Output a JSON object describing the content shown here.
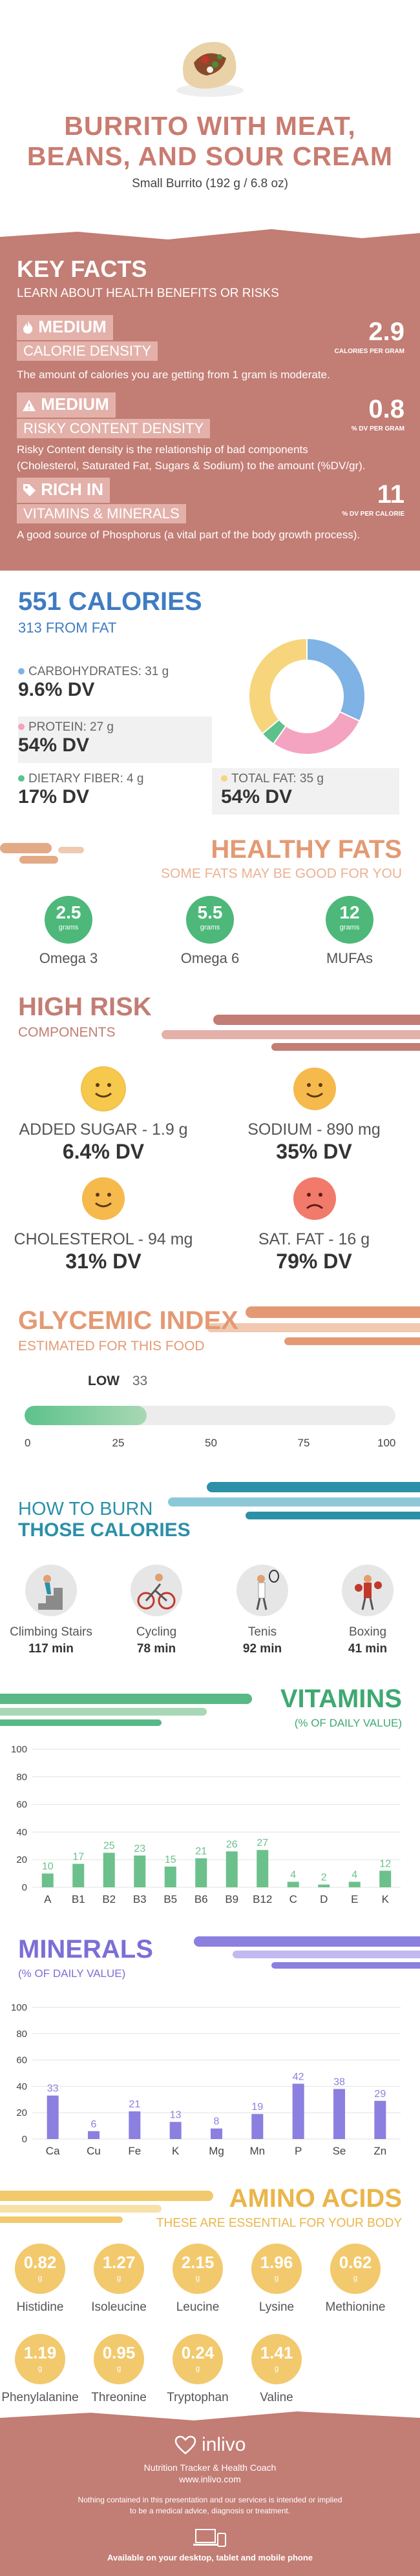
{
  "header": {
    "title_line1": "BURRITO WITH MEAT,",
    "title_line2": "BEANS, AND SOUR CREAM",
    "subtitle": "Small Burrito (192 g / 6.8 oz)"
  },
  "key_facts": {
    "title": "KEY FACTS",
    "subtitle": "LEARN ABOUT HEALTH BENEFITS OR RISKS",
    "items": [
      {
        "tag": "MEDIUM",
        "name": "CALORIE DENSITY",
        "value": "2.9",
        "unit": "CALORIES PER GRAM",
        "desc": "The amount of calories you are getting from 1 gram is moderate.",
        "icon": "flame-icon"
      },
      {
        "tag": "MEDIUM",
        "name": "RISKY CONTENT DENSITY",
        "value": "0.8",
        "unit": "% DV PER GRAM",
        "desc1": "Risky Content density is the relationship of bad components",
        "desc2": "(Cholesterol, Saturated Fat, Sugars & Sodium) to the amount (%DV/gr).",
        "icon": "warning-icon"
      },
      {
        "tag": "RICH  IN",
        "name": "VITAMINS & MINERALS",
        "value": "11",
        "unit": "% DV PER CALORIE",
        "desc": "A good source of Phosphorus (a vital part of the body growth process).",
        "icon": "tag-icon"
      }
    ]
  },
  "calories": {
    "title": "551 CALORIES",
    "subtitle": "313 FROM FAT",
    "carbs": {
      "label": "CARBOHYDRATES: 31 g",
      "dv": "9.6% DV",
      "color": "#7fb2e5"
    },
    "protein": {
      "label": "PROTEIN: 27 g",
      "dv": "54% DV",
      "color": "#f4a3c0"
    },
    "fiber": {
      "label": "DIETARY FIBER: 4 g",
      "dv": "17% DV",
      "color": "#5cc18b"
    },
    "fat": {
      "label": "TOTAL FAT: 35 g",
      "dv": "54% DV",
      "color": "#f6d57c"
    }
  },
  "chart_data": [
    {
      "type": "pie",
      "categories": [
        "Carbohydrates",
        "Protein",
        "Dietary Fiber",
        "Total Fat"
      ],
      "values": [
        31,
        27,
        4,
        35
      ]
    },
    {
      "type": "bar",
      "title": "VITAMINS",
      "subtitle": "(% OF DAILY VALUE)",
      "categories": [
        "A",
        "B1",
        "B2",
        "B3",
        "B5",
        "B6",
        "B9",
        "B12",
        "C",
        "D",
        "E",
        "K"
      ],
      "values": [
        10,
        17,
        25,
        23,
        15,
        21,
        26,
        27,
        4,
        2,
        4,
        12
      ],
      "yticks": [
        0,
        20,
        40,
        60,
        80,
        100
      ],
      "ylim": [
        0,
        100
      ],
      "color": "#6cc08b"
    },
    {
      "type": "bar",
      "title": "MINERALS",
      "subtitle": "(% OF DAILY VALUE)",
      "categories": [
        "Ca",
        "Cu",
        "Fe",
        "K",
        "Mg",
        "Mn",
        "P",
        "Se",
        "Zn"
      ],
      "values": [
        33,
        6,
        21,
        13,
        8,
        19,
        42,
        38,
        29
      ],
      "yticks": [
        0,
        20,
        40,
        60,
        80,
        100
      ],
      "ylim": [
        0,
        100
      ],
      "color": "#8b7fe0"
    }
  ],
  "healthy_fats": {
    "title": "HEALTHY FATS",
    "subtitle": "SOME FATS MAY BE GOOD FOR YOU",
    "unit": "grams",
    "items": [
      {
        "value": "2.5",
        "label": "Omega 3"
      },
      {
        "value": "5.5",
        "label": "Omega 6"
      },
      {
        "value": "12",
        "label": "MUFAs"
      }
    ]
  },
  "high_risk": {
    "title": "HIGH RISK",
    "subtitle": "COMPONENTS",
    "items": [
      {
        "label": "ADDED SUGAR - 1.9 g",
        "dv": "6.4% DV",
        "face": "smile"
      },
      {
        "label": "SODIUM - 890 mg",
        "dv": "35% DV",
        "face": "smile"
      },
      {
        "label": "CHOLESTEROL - 94 mg",
        "dv": "31% DV",
        "face": "smile"
      },
      {
        "label": "SAT. FAT - 16 g",
        "dv": "79% DV",
        "face": "sad"
      }
    ]
  },
  "glycemic": {
    "title": "GLYCEMIC INDEX",
    "subtitle": "ESTIMATED FOR THIS FOOD",
    "level": "LOW",
    "value": "33",
    "fraction": 0.33,
    "ticks": [
      "0",
      "25",
      "50",
      "75",
      "100"
    ]
  },
  "burn": {
    "title1": "HOW TO BURN",
    "title2": "THOSE CALORIES",
    "items": [
      {
        "label": "Climbing Stairs",
        "min": "117 min",
        "icon": "stairs-icon"
      },
      {
        "label": "Cycling",
        "min": "78 min",
        "icon": "cycling-icon"
      },
      {
        "label": "Tenis",
        "min": "92 min",
        "icon": "tennis-icon"
      },
      {
        "label": "Boxing",
        "min": "41 min",
        "icon": "boxing-icon"
      }
    ]
  },
  "amino": {
    "title": "AMINO ACIDS",
    "subtitle": "THESE ARE ESSENTIAL FOR YOUR BODY",
    "unit": "g",
    "items": [
      {
        "value": "0.82",
        "label": "Histidine"
      },
      {
        "value": "1.27",
        "label": "Isoleucine"
      },
      {
        "value": "2.15",
        "label": "Leucine"
      },
      {
        "value": "1.96",
        "label": "Lysine"
      },
      {
        "value": "0.62",
        "label": "Methionine"
      },
      {
        "value": "1.19",
        "label": "Phenylalanine"
      },
      {
        "value": "0.95",
        "label": "Threonine"
      },
      {
        "value": "0.24",
        "label": "Tryptophan"
      },
      {
        "value": "1.41",
        "label": "Valine"
      }
    ]
  },
  "footer": {
    "brand": "inlivo",
    "tagline": "Nutrition Tracker & Health Coach",
    "url": "www.inlivo.com",
    "disclaimer1": "Nothing contained in this presentation and our services is intended or implied",
    "disclaimer2": "to be a medical advice, diagnosis or treatment.",
    "platforms": "Available on your desktop, tablet and mobile phone"
  }
}
